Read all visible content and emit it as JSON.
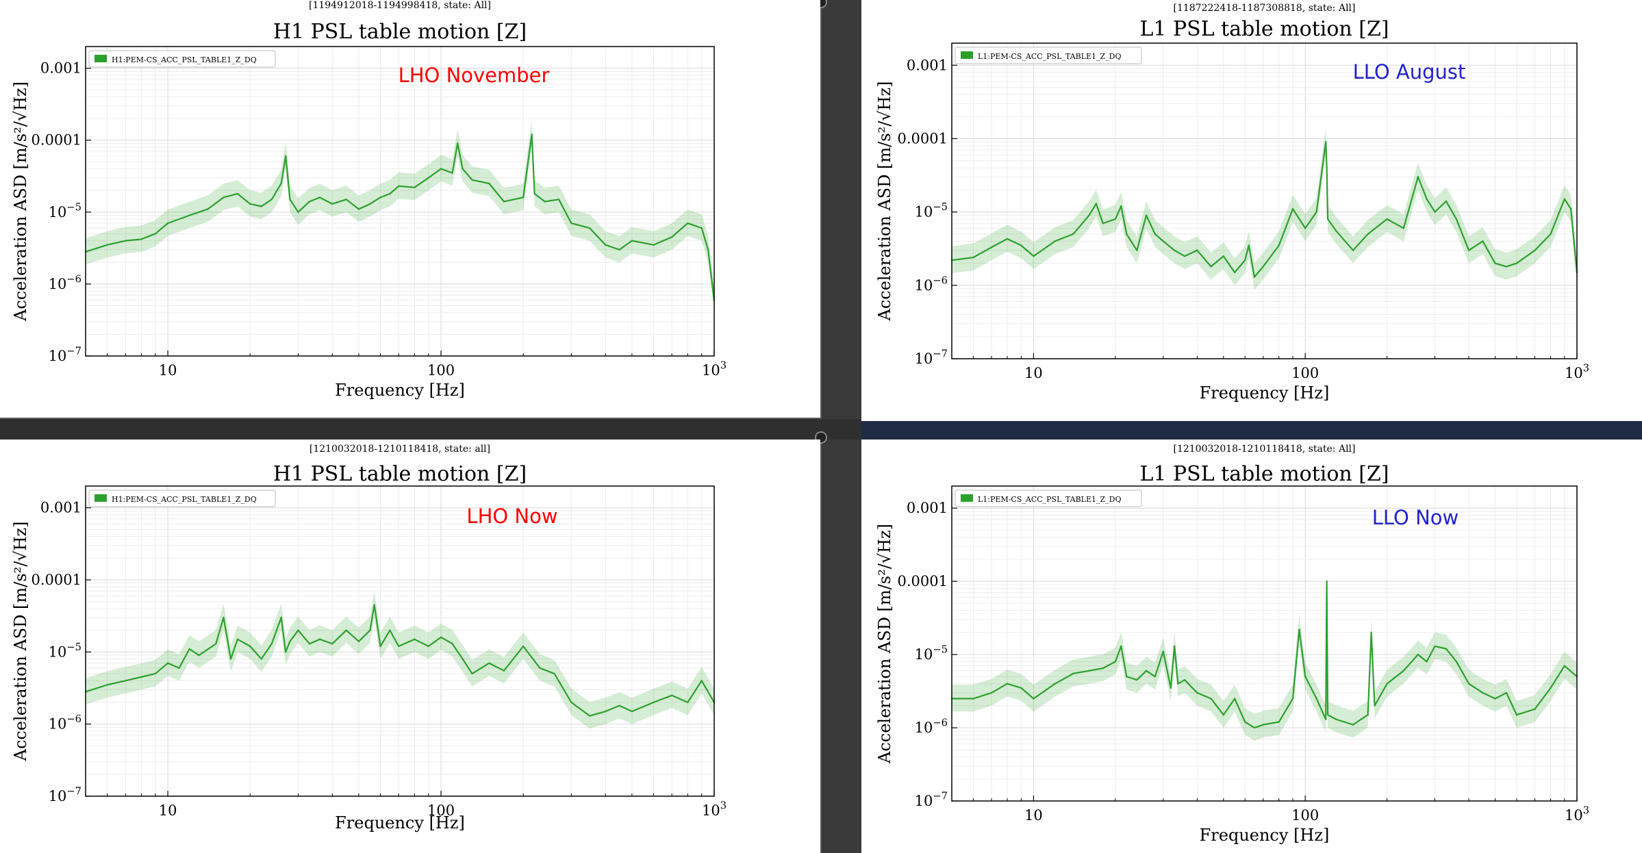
{
  "page": {
    "background_color": "#5c5c5c"
  },
  "panels": [
    {
      "id": "h1-november",
      "window_text": "[1194912018-1194998418, state: All]",
      "overlay_label": "LHO November",
      "overlay_color": "#ff0000",
      "legend_text": "H1:PEM-CS_ACC_PSL_TABLE1_Z_DQ"
    },
    {
      "id": "l1-august",
      "window_text": "[1187222418-1187308818, state: All]",
      "overlay_label": "LLO August",
      "overlay_color": "#2222cc",
      "legend_text": "L1:PEM-CS_ACC_PSL_TABLE1_Z_DQ"
    },
    {
      "id": "h1-now",
      "window_text": "[1210032018-1210118418, state: all]",
      "overlay_label": "LHO Now",
      "overlay_color": "#ff0000",
      "legend_text": "H1:PEM-CS_ACC_PSL_TABLE1_Z_DQ"
    },
    {
      "id": "l1-now",
      "window_text": "[1210032018-1210118418, state: All]",
      "overlay_label": "LLO Now",
      "overlay_color": "#2222cc",
      "legend_text": "L1:PEM-CS_ACC_PSL_TABLE1_Z_DQ"
    }
  ],
  "chart_data": [
    {
      "type": "line",
      "title": "H1 PSL table motion [Z]",
      "xlabel": "Frequency [Hz]",
      "ylabel": "Acceleration ASD [m/s²/√Hz]",
      "x_scale": "log",
      "y_scale": "log",
      "xlim": [
        5,
        1000
      ],
      "ylim": [
        1e-07,
        0.002
      ],
      "x_ticks": [
        "10",
        "100",
        "10³"
      ],
      "y_ticks": [
        "0.001",
        "0.0001",
        "10⁻⁵",
        "10⁻⁶",
        "10⁻⁷"
      ],
      "grid": true,
      "legend_position": "top-left",
      "line_color": "#2ca02c",
      "band_color": "#2ca02c",
      "series": [
        {
          "name": "H1:PEM-CS_ACC_PSL_TABLE1_Z_DQ",
          "x": [
            5,
            6,
            7,
            8,
            9,
            10,
            12,
            14,
            16,
            18,
            20,
            22,
            24,
            26,
            27,
            28,
            30,
            33,
            36,
            40,
            45,
            50,
            55,
            60,
            65,
            70,
            80,
            90,
            100,
            110,
            115,
            120,
            130,
            150,
            170,
            200,
            215,
            220,
            240,
            270,
            300,
            350,
            400,
            450,
            500,
            600,
            700,
            800,
            900,
            950,
            1000
          ],
          "y": [
            2.8e-06,
            3.5e-06,
            4e-06,
            4.2e-06,
            5e-06,
            7e-06,
            9e-06,
            1.1e-05,
            1.6e-05,
            1.8e-05,
            1.3e-05,
            1.2e-05,
            1.5e-05,
            2.5e-05,
            6e-05,
            1.5e-05,
            1e-05,
            1.4e-05,
            1.6e-05,
            1.3e-05,
            1.5e-05,
            1.1e-05,
            1.3e-05,
            1.6e-05,
            1.8e-05,
            2.3e-05,
            2.2e-05,
            3e-05,
            4e-05,
            3.5e-05,
            9e-05,
            4e-05,
            2.8e-05,
            2.5e-05,
            1.4e-05,
            1.6e-05,
            0.00012,
            1.8e-05,
            1.4e-05,
            1.5e-05,
            7e-06,
            6e-06,
            3.5e-06,
            3e-06,
            4e-06,
            3.5e-06,
            4.5e-06,
            7e-06,
            6e-06,
            3e-06,
            6e-07
          ]
        }
      ]
    },
    {
      "type": "line",
      "title": "L1 PSL table motion [Z]",
      "xlabel": "Frequency [Hz]",
      "ylabel": "Acceleration ASD [m/s²/√Hz]",
      "x_scale": "log",
      "y_scale": "log",
      "xlim": [
        5,
        1000
      ],
      "ylim": [
        1e-07,
        0.002
      ],
      "x_ticks": [
        "10",
        "100",
        "10³"
      ],
      "y_ticks": [
        "0.001",
        "0.0001",
        "10⁻⁵",
        "10⁻⁶",
        "10⁻⁷"
      ],
      "grid": true,
      "legend_position": "top-left",
      "line_color": "#2ca02c",
      "band_color": "#2ca02c",
      "series": [
        {
          "name": "L1:PEM-CS_ACC_PSL_TABLE1_Z_DQ",
          "x": [
            5,
            6,
            7,
            8,
            9,
            10,
            12,
            14,
            16,
            17,
            18,
            20,
            21,
            22,
            24,
            26,
            28,
            30,
            33,
            36,
            40,
            45,
            50,
            55,
            60,
            62,
            65,
            70,
            80,
            90,
            100,
            110,
            119,
            120,
            121,
            130,
            150,
            170,
            200,
            230,
            260,
            280,
            300,
            330,
            360,
            400,
            450,
            500,
            550,
            600,
            700,
            800,
            900,
            950,
            1000
          ],
          "y": [
            2.2e-06,
            2.4e-06,
            3.3e-06,
            4.3e-06,
            3.5e-06,
            2.5e-06,
            4e-06,
            5e-06,
            9e-06,
            1.3e-05,
            7e-06,
            8e-06,
            1.2e-05,
            5e-06,
            3e-06,
            9e-06,
            5e-06,
            4e-06,
            3e-06,
            2.5e-06,
            3e-06,
            1.8e-06,
            2.5e-06,
            1.5e-06,
            2.2e-06,
            3.5e-06,
            1.3e-06,
            1.8e-06,
            3.5e-06,
            1.1e-05,
            6e-06,
            1e-05,
            9e-05,
            4e-05,
            8e-06,
            5.5e-06,
            3e-06,
            5e-06,
            8e-06,
            6e-06,
            3e-05,
            1.5e-05,
            1e-05,
            1.4e-05,
            8e-06,
            3e-06,
            4e-06,
            2e-06,
            1.8e-06,
            2e-06,
            3e-06,
            5e-06,
            1.5e-05,
            1.1e-05,
            1.5e-06
          ]
        }
      ]
    },
    {
      "type": "line",
      "title": "H1 PSL table motion [Z]",
      "xlabel": "Frequency [Hz]",
      "ylabel": "Acceleration ASD [m/s²/√Hz]",
      "x_scale": "log",
      "y_scale": "log",
      "xlim": [
        5,
        1000
      ],
      "ylim": [
        1e-07,
        0.002
      ],
      "x_ticks": [
        "10",
        "100",
        "10³"
      ],
      "y_ticks": [
        "0.001",
        "0.0001",
        "10⁻⁵",
        "10⁻⁶",
        "10⁻⁷"
      ],
      "grid": true,
      "legend_position": "top-left",
      "line_color": "#2ca02c",
      "band_color": "#2ca02c",
      "series": [
        {
          "name": "H1:PEM-CS_ACC_PSL_TABLE1_Z_DQ",
          "x": [
            5,
            6,
            7,
            8,
            9,
            10,
            11,
            12,
            13,
            15,
            16,
            17,
            18,
            20,
            22,
            24,
            26,
            27,
            28,
            30,
            33,
            36,
            40,
            45,
            50,
            55,
            57,
            60,
            65,
            70,
            80,
            90,
            100,
            110,
            120,
            130,
            150,
            170,
            200,
            230,
            260,
            300,
            350,
            400,
            450,
            500,
            600,
            700,
            800,
            900,
            1000
          ],
          "y": [
            2.8e-06,
            3.5e-06,
            4e-06,
            4.5e-06,
            5e-06,
            7e-06,
            6e-06,
            1.1e-05,
            9e-06,
            1.3e-05,
            3e-05,
            8e-06,
            1.5e-05,
            1.2e-05,
            8e-06,
            1.3e-05,
            3e-05,
            1e-05,
            1.4e-05,
            2e-05,
            1.3e-05,
            1.5e-05,
            1.3e-05,
            2e-05,
            1.4e-05,
            2e-05,
            4.5e-05,
            1.2e-05,
            2e-05,
            1.2e-05,
            1.5e-05,
            1.2e-05,
            1.6e-05,
            1.3e-05,
            8e-06,
            5e-06,
            7e-06,
            5.5e-06,
            1.2e-05,
            6e-06,
            5e-06,
            2e-06,
            1.3e-06,
            1.5e-06,
            1.8e-06,
            1.5e-06,
            2e-06,
            2.5e-06,
            2e-06,
            4e-06,
            2e-06
          ]
        }
      ]
    },
    {
      "type": "line",
      "title": "L1 PSL table motion [Z]",
      "xlabel": "Frequency [Hz]",
      "ylabel": "Acceleration ASD [m/s²/√Hz]",
      "x_scale": "log",
      "y_scale": "log",
      "xlim": [
        5,
        1000
      ],
      "ylim": [
        1e-07,
        0.002
      ],
      "x_ticks": [
        "10",
        "100",
        "10³"
      ],
      "y_ticks": [
        "0.001",
        "0.0001",
        "10⁻⁵",
        "10⁻⁶",
        "10⁻⁷"
      ],
      "grid": true,
      "legend_position": "top-left",
      "line_color": "#2ca02c",
      "band_color": "#2ca02c",
      "series": [
        {
          "name": "L1:PEM-CS_ACC_PSL_TABLE1_Z_DQ",
          "x": [
            5,
            6,
            7,
            8,
            9,
            10,
            12,
            14,
            16,
            18,
            20,
            21,
            22,
            24,
            26,
            28,
            30,
            32,
            33,
            34,
            36,
            40,
            45,
            50,
            55,
            60,
            65,
            70,
            80,
            90,
            95,
            100,
            110,
            119,
            120,
            121,
            130,
            150,
            170,
            175,
            180,
            200,
            230,
            260,
            280,
            300,
            330,
            360,
            400,
            450,
            500,
            550,
            600,
            700,
            800,
            900,
            1000
          ],
          "y": [
            2.5e-06,
            2.5e-06,
            3e-06,
            4e-06,
            3.5e-06,
            2.5e-06,
            4e-06,
            5.5e-06,
            6e-06,
            6.5e-06,
            8e-06,
            1.3e-05,
            5e-06,
            4.5e-06,
            6e-06,
            5e-06,
            1.1e-05,
            3.5e-06,
            1.3e-05,
            4e-06,
            4.5e-06,
            3e-06,
            2.5e-06,
            1.5e-06,
            2.5e-06,
            1.2e-06,
            1e-06,
            1.1e-06,
            1.2e-06,
            2.5e-06,
            2.2e-05,
            5e-06,
            2.5e-06,
            1.3e-06,
            0.0001,
            1.5e-06,
            1.3e-06,
            1.1e-06,
            1.5e-06,
            2e-05,
            2e-06,
            4e-06,
            6e-06,
            1e-05,
            8e-06,
            1.3e-05,
            1.2e-05,
            8e-06,
            4e-06,
            3e-06,
            2.5e-06,
            3e-06,
            1.5e-06,
            1.8e-06,
            3.5e-06,
            7e-06,
            5e-06
          ]
        }
      ]
    }
  ]
}
